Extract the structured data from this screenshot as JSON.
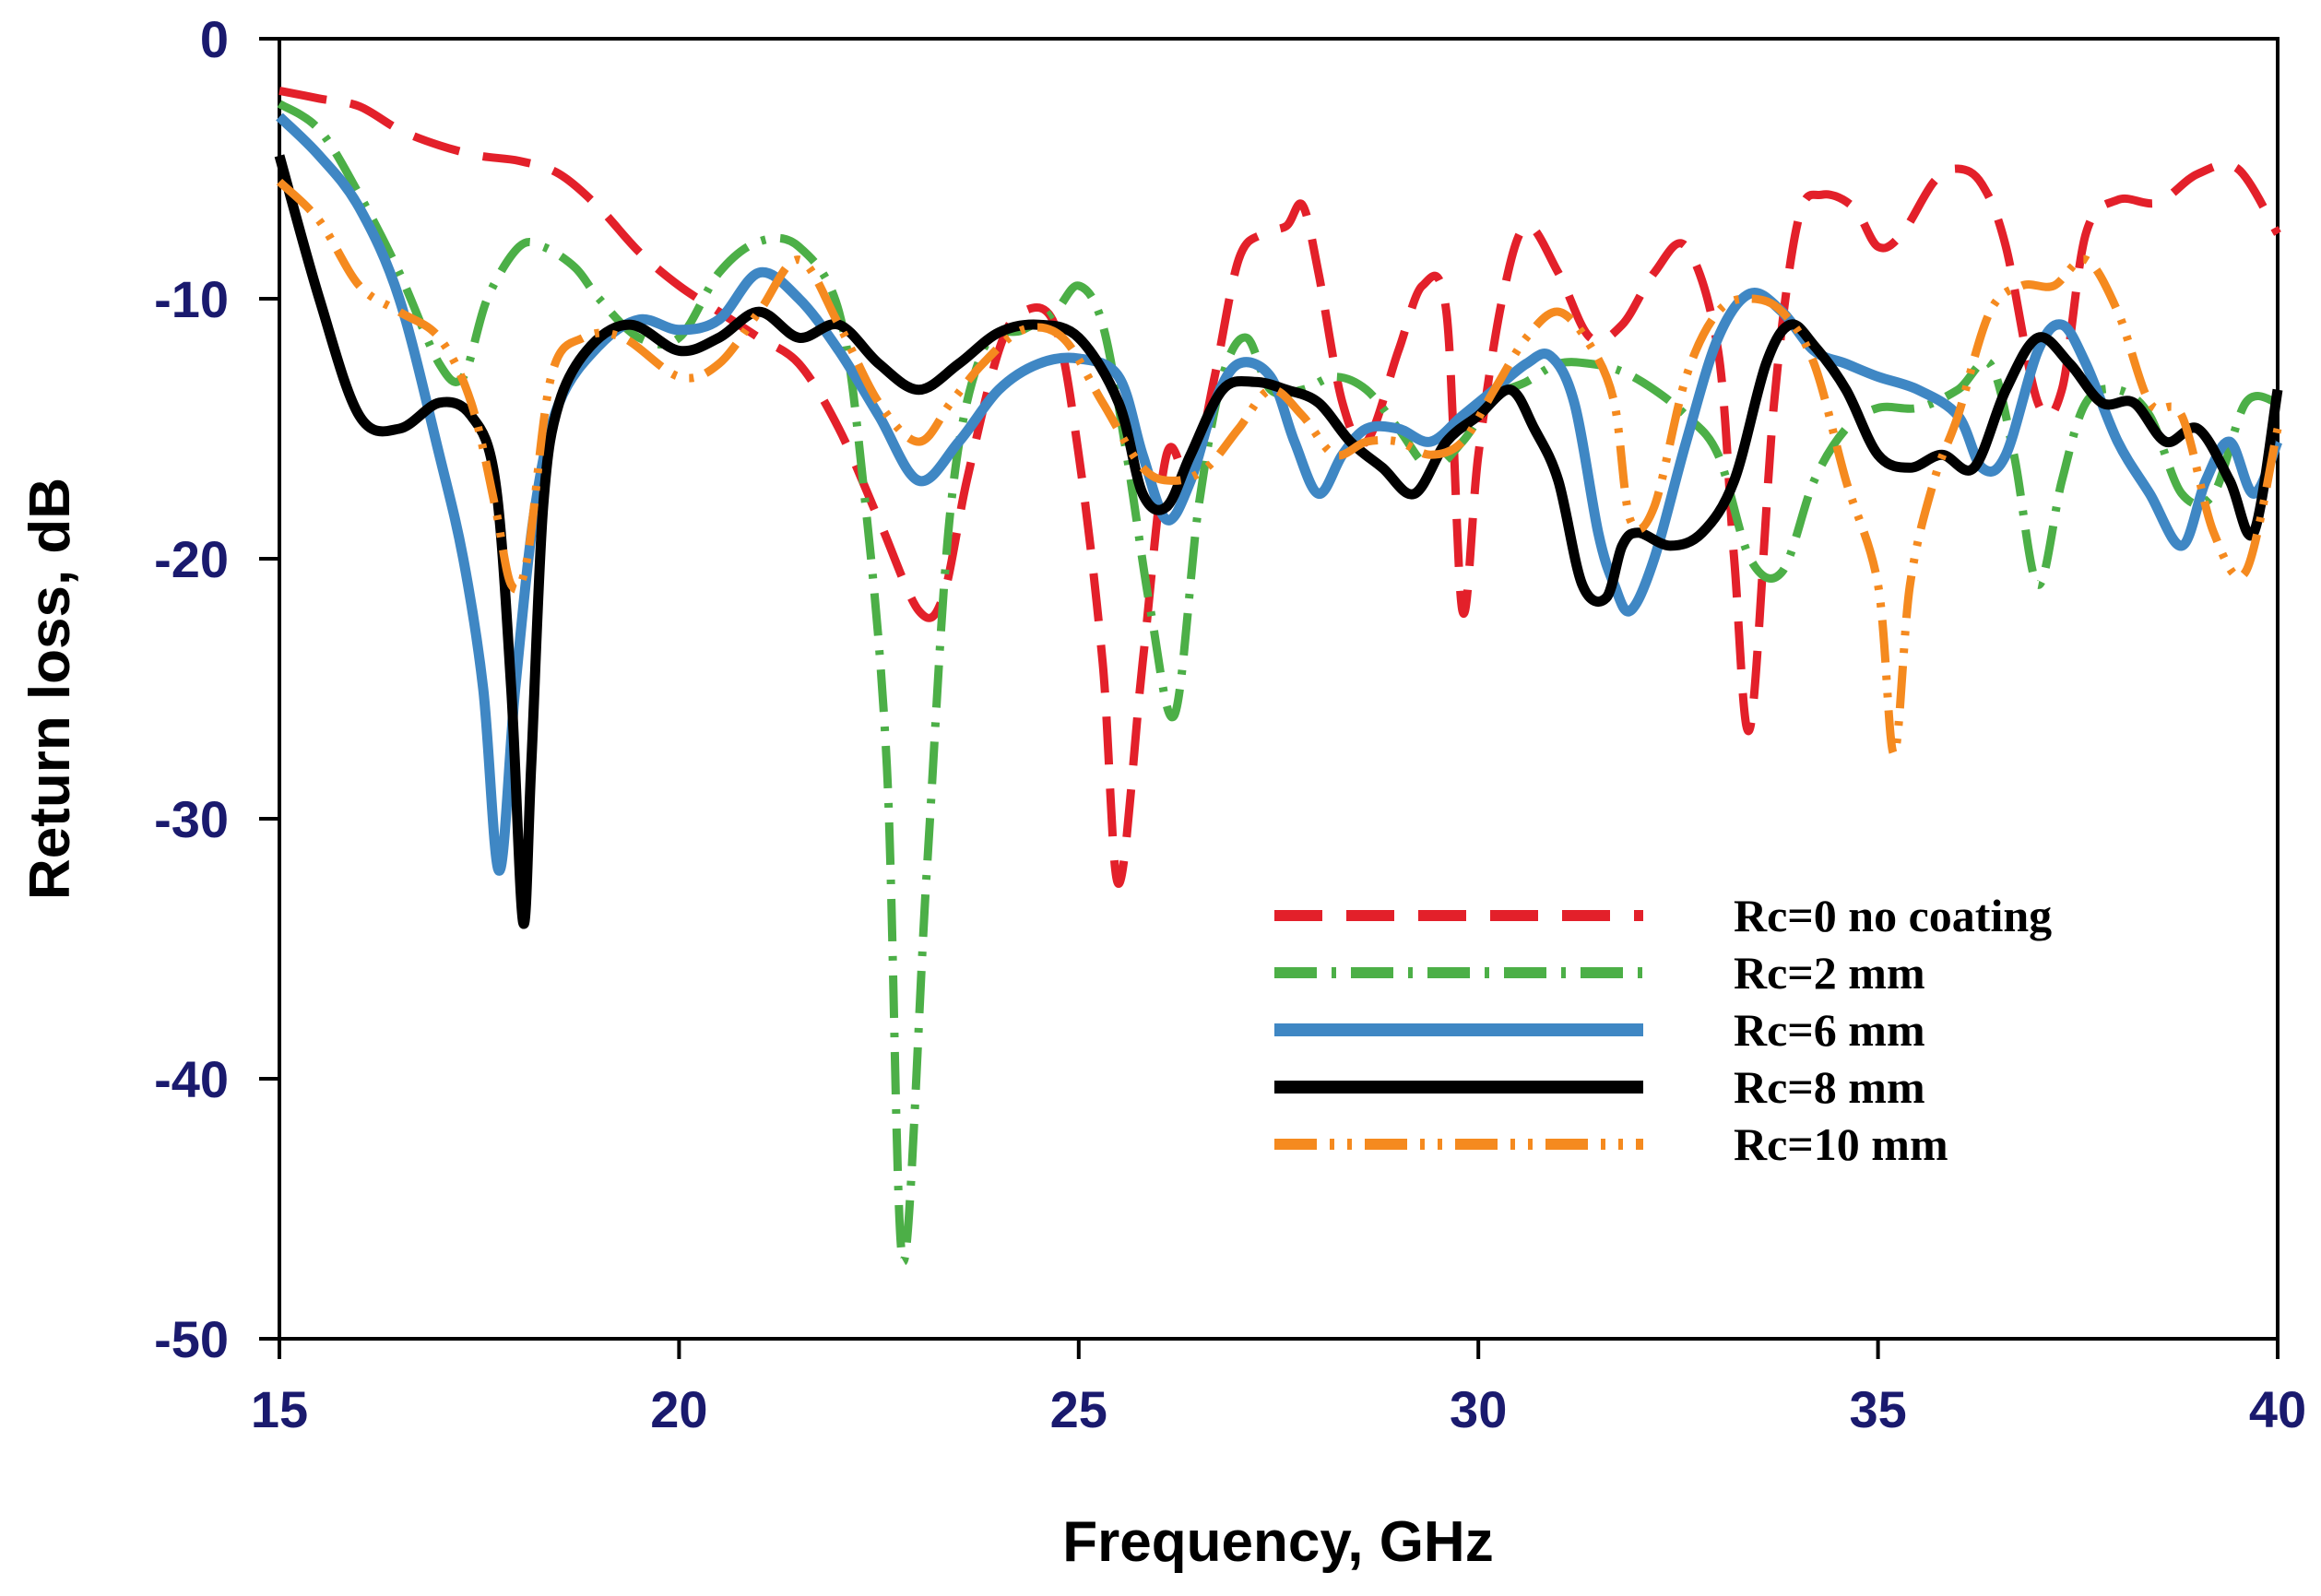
{
  "chart_data": {
    "type": "line",
    "title": "",
    "xlabel": "Frequency, GHz",
    "ylabel": "Return loss, dB",
    "xlim": [
      15,
      40
    ],
    "ylim": [
      -50,
      0
    ],
    "xticks": [
      15,
      20,
      25,
      30,
      35,
      40
    ],
    "yticks": [
      0,
      -10,
      -20,
      -30,
      -40,
      -50
    ],
    "grid": false,
    "legend_position": "bottom-right",
    "series": [
      {
        "name": "Rc=0 no coating",
        "color": "#e3202a",
        "style": "dashed",
        "x": [
          15,
          15.5,
          16,
          16.5,
          17,
          17.5,
          18,
          18.5,
          19,
          19.5,
          20,
          20.5,
          21,
          21.5,
          22,
          22.5,
          23,
          23.3,
          23.6,
          24,
          24.3,
          24.7,
          25,
          25.3,
          25.5,
          25.8,
          26.1,
          26.4,
          26.7,
          27,
          27.3,
          27.6,
          27.8,
          28,
          28.3,
          28.6,
          29,
          29.3,
          29.6,
          29.8,
          30,
          30.3,
          30.6,
          31,
          31.4,
          31.8,
          32.2,
          32.6,
          33,
          33.2,
          33.4,
          33.7,
          34,
          34.3,
          34.7,
          35,
          35.3,
          35.7,
          36,
          36.3,
          36.6,
          37,
          37.3,
          37.6,
          38,
          38.5,
          39,
          39.5,
          40
        ],
        "y": [
          -2,
          -2.3,
          -2.6,
          -3.5,
          -4.1,
          -4.5,
          -4.7,
          -5.2,
          -6.5,
          -8.2,
          -9.5,
          -10.5,
          -11.5,
          -12.5,
          -15,
          -18.5,
          -22,
          -21.5,
          -17,
          -12,
          -10.5,
          -11,
          -16,
          -24,
          -32.5,
          -24,
          -16,
          -17,
          -13,
          -8.5,
          -7.5,
          -7.2,
          -6.4,
          -9,
          -14,
          -15.5,
          -12,
          -9.5,
          -10.5,
          -22,
          -16,
          -10,
          -7.2,
          -9,
          -11.5,
          -11,
          -9,
          -8,
          -12,
          -20,
          -26.5,
          -14,
          -7,
          -6,
          -6.5,
          -8,
          -7.5,
          -5.5,
          -5,
          -5.6,
          -8,
          -14,
          -13.5,
          -7.5,
          -6.2,
          -6.3,
          -5.2,
          -5,
          -7.5
        ]
      },
      {
        "name": "Rc=2 mm",
        "color": "#4caf47",
        "style": "dash-dot",
        "x": [
          15,
          15.5,
          16,
          16.5,
          17,
          17.3,
          17.6,
          18,
          18.3,
          18.7,
          19,
          19.5,
          20,
          20.5,
          21,
          21.5,
          22,
          22.3,
          22.6,
          22.8,
          23.1,
          23.4,
          23.8,
          24.3,
          24.7,
          25,
          25.3,
          25.6,
          25.9,
          26.2,
          26.5,
          26.8,
          27.1,
          27.4,
          27.8,
          28.2,
          28.6,
          29,
          29.4,
          29.8,
          30.2,
          30.6,
          31,
          31.4,
          31.8,
          32.2,
          32.6,
          33,
          33.4,
          33.8,
          34.2,
          34.6,
          35,
          35.5,
          36,
          36.4,
          36.7,
          37,
          37.3,
          37.6,
          38,
          38.4,
          38.8,
          39.2,
          39.6,
          40
        ],
        "y": [
          -2.5,
          -3.5,
          -6,
          -9,
          -12.5,
          -13,
          -10,
          -8,
          -8,
          -8.8,
          -10,
          -11.5,
          -11.5,
          -9,
          -7.8,
          -8,
          -10.5,
          -17,
          -28,
          -47,
          -32,
          -18,
          -12,
          -11.2,
          -10.5,
          -9.5,
          -11,
          -16,
          -22,
          -26,
          -18,
          -13,
          -11.5,
          -13.5,
          -13.5,
          -13,
          -13.5,
          -15,
          -16.5,
          -15.5,
          -13.8,
          -13.2,
          -12.5,
          -12.5,
          -12.8,
          -13.5,
          -14.5,
          -16,
          -20,
          -20.5,
          -17,
          -15,
          -14.2,
          -14.2,
          -13.5,
          -12.5,
          -16,
          -21,
          -17,
          -14,
          -13.5,
          -14.5,
          -17.5,
          -17.5,
          -14,
          -14
        ]
      },
      {
        "name": "Rc=6 mm",
        "color": "#3f87c4",
        "style": "solid",
        "x": [
          15,
          15.5,
          16,
          16.5,
          17,
          17.3,
          17.55,
          17.75,
          17.95,
          18.2,
          18.5,
          19,
          19.5,
          20,
          20.5,
          21,
          21.5,
          22,
          22.5,
          23,
          23.5,
          24,
          24.5,
          25,
          25.5,
          25.8,
          26.1,
          26.4,
          26.7,
          27,
          27.4,
          27.7,
          28,
          28.3,
          28.6,
          29,
          29.4,
          29.8,
          30.2,
          30.6,
          30.9,
          31.2,
          31.5,
          31.7,
          31.9,
          32.2,
          32.6,
          33,
          33.4,
          33.8,
          34.2,
          34.6,
          35,
          35.5,
          36,
          36.3,
          36.6,
          37,
          37.3,
          37.6,
          38,
          38.4,
          38.8,
          39.1,
          39.4,
          39.7,
          40
        ],
        "y": [
          -3,
          -4.5,
          -6.5,
          -10,
          -16,
          -20,
          -25,
          -32,
          -25,
          -18,
          -14,
          -11.8,
          -10.8,
          -11.2,
          -10.8,
          -9,
          -10,
          -12,
          -14.5,
          -17,
          -15.5,
          -13.5,
          -12.5,
          -12.3,
          -13,
          -16,
          -18.5,
          -17,
          -14,
          -12.5,
          -13,
          -15.5,
          -17.5,
          -16,
          -15,
          -15,
          -15.5,
          -14.5,
          -13.5,
          -12.5,
          -12.2,
          -14,
          -19,
          -21,
          -22,
          -20,
          -15.5,
          -11.5,
          -9.8,
          -10.5,
          -12,
          -12.5,
          -13,
          -13.5,
          -14.5,
          -16.5,
          -16,
          -12,
          -11,
          -12.5,
          -15.5,
          -17.5,
          -19.5,
          -17,
          -15.5,
          -17.5,
          -15.5
        ]
      },
      {
        "name": "Rc=8 mm",
        "color": "#000000",
        "style": "solid",
        "x": [
          15,
          15.5,
          16,
          16.5,
          17,
          17.4,
          17.7,
          17.9,
          18.05,
          18.15,
          18.3,
          18.5,
          18.9,
          19.4,
          20,
          20.5,
          21,
          21.5,
          22,
          22.5,
          23,
          23.5,
          24,
          24.5,
          25,
          25.5,
          25.8,
          26.1,
          26.4,
          26.8,
          27.2,
          27.6,
          28,
          28.4,
          28.8,
          29.2,
          29.6,
          30,
          30.4,
          30.7,
          31,
          31.3,
          31.6,
          31.8,
          32,
          32.4,
          32.8,
          33.2,
          33.6,
          33.9,
          34.2,
          34.6,
          35,
          35.4,
          35.8,
          36.2,
          36.6,
          37,
          37.4,
          37.8,
          38.2,
          38.6,
          39,
          39.4,
          39.7,
          40
        ],
        "y": [
          -4.5,
          -10,
          -14.5,
          -15,
          -14,
          -14.5,
          -17,
          -25,
          -34,
          -28,
          -18,
          -14,
          -11.8,
          -11,
          -12,
          -11.5,
          -10.5,
          -11.5,
          -11,
          -12.5,
          -13.5,
          -12.5,
          -11.3,
          -11,
          -11.5,
          -14,
          -17.5,
          -18,
          -16,
          -13.5,
          -13.2,
          -13.5,
          -14,
          -15.5,
          -16.5,
          -17.5,
          -15.5,
          -14.5,
          -13.5,
          -15,
          -17,
          -21,
          -21.5,
          -19.5,
          -19,
          -19.5,
          -19,
          -17,
          -12.5,
          -11,
          -11.8,
          -13.5,
          -16,
          -16.5,
          -16,
          -16.5,
          -13.5,
          -11.5,
          -12.5,
          -14,
          -14,
          -15.5,
          -15,
          -17,
          -19,
          -13.5
        ]
      },
      {
        "name": "Rc=10 mm",
        "color": "#f58a1f",
        "style": "dash-dot-dot",
        "x": [
          15,
          15.5,
          16,
          16.5,
          17,
          17.4,
          17.7,
          17.9,
          18.1,
          18.4,
          18.8,
          19.3,
          20,
          20.5,
          21,
          21.5,
          22,
          22.5,
          23,
          23.4,
          23.8,
          24.3,
          24.8,
          25.3,
          25.8,
          26.2,
          26.6,
          27,
          27.4,
          27.8,
          28.2,
          28.6,
          29,
          29.4,
          29.8,
          30.2,
          30.6,
          31,
          31.4,
          31.7,
          31.9,
          32.2,
          32.6,
          33,
          33.4,
          33.8,
          34.2,
          34.6,
          35,
          35.2,
          35.4,
          35.7,
          36,
          36.4,
          36.8,
          37.2,
          37.6,
          38,
          38.4,
          38.8,
          39.2,
          39.6,
          40
        ],
        "y": [
          -5.5,
          -7,
          -9.5,
          -10.5,
          -11.5,
          -14,
          -18,
          -21,
          -20,
          -13,
          -11.5,
          -11.5,
          -13,
          -12.5,
          -10.5,
          -8.5,
          -11,
          -14,
          -15.5,
          -14,
          -12.5,
          -11.2,
          -11.5,
          -14,
          -16.5,
          -17,
          -16.5,
          -15,
          -13.5,
          -14.5,
          -16,
          -15.5,
          -15.5,
          -16,
          -15.5,
          -13.5,
          -11.5,
          -10.5,
          -11.8,
          -14,
          -18.5,
          -18,
          -13,
          -10.5,
          -10,
          -10.5,
          -12.5,
          -17,
          -21,
          -27.5,
          -21,
          -17,
          -14.5,
          -10.5,
          -9.5,
          -9.5,
          -8.5,
          -10.5,
          -14,
          -14.5,
          -19,
          -20.5,
          -15
        ]
      }
    ]
  }
}
